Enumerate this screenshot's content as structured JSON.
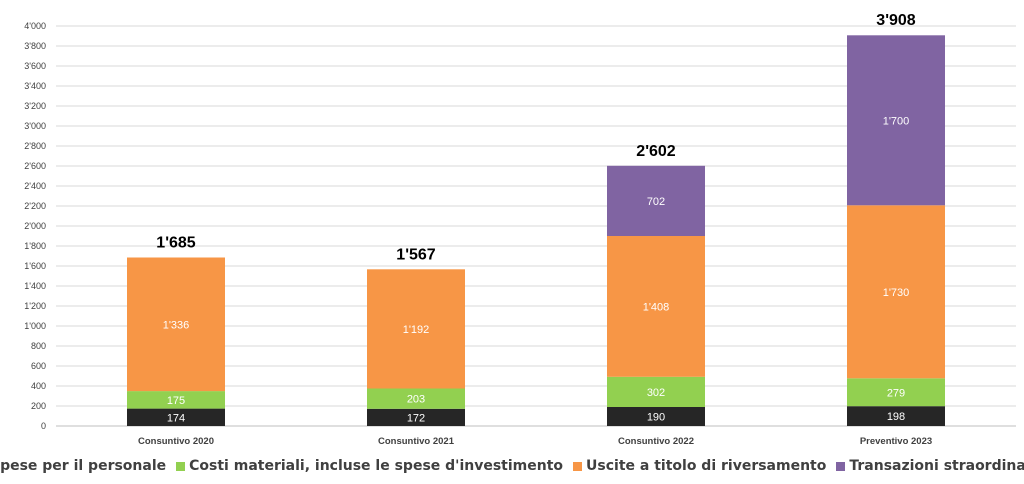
{
  "chart_data": {
    "type": "stacked-bar",
    "title": "",
    "xlabel": "",
    "ylabel": "",
    "ylim": [
      0,
      4000
    ],
    "ytick_step": 200,
    "ytick_labels": [
      "0",
      "200",
      "400",
      "600",
      "800",
      "1'000",
      "1'200",
      "1'400",
      "1'600",
      "1'800",
      "2'000",
      "2'200",
      "2'400",
      "2'600",
      "2'800",
      "3'000",
      "3'200",
      "3'400",
      "3'600",
      "3'800",
      "4'000"
    ],
    "grid": true,
    "legend_position": "bottom",
    "categories": [
      "Consuntivo 2020",
      "Consuntivo 2021",
      "Consuntivo 2022",
      "Preventivo 2023"
    ],
    "series": [
      {
        "name": "Spese per il personale",
        "color": "#262626",
        "values": [
          174,
          172,
          190,
          198
        ],
        "labels": [
          "174",
          "172",
          "190",
          "198"
        ]
      },
      {
        "name": "Costi materiali, incluse le spese d'investimento",
        "color": "#92d050",
        "values": [
          175,
          203,
          302,
          279
        ],
        "labels": [
          "175",
          "203",
          "302",
          "279"
        ]
      },
      {
        "name": "Uscite a titolo di riversamento",
        "color": "#f79646",
        "values": [
          1336,
          1192,
          1408,
          1730
        ],
        "labels": [
          "1'336",
          "1'192",
          "1'408",
          "1'730"
        ]
      },
      {
        "name": "Transazioni straordinarie",
        "color": "#8064a2",
        "values": [
          0,
          0,
          702,
          1700
        ],
        "labels": [
          "",
          "",
          "702",
          "1'700"
        ]
      }
    ],
    "totals": [
      1685,
      1567,
      2602,
      3908
    ],
    "total_labels": [
      "1'685",
      "1'567",
      "2'602",
      "3'908"
    ]
  }
}
